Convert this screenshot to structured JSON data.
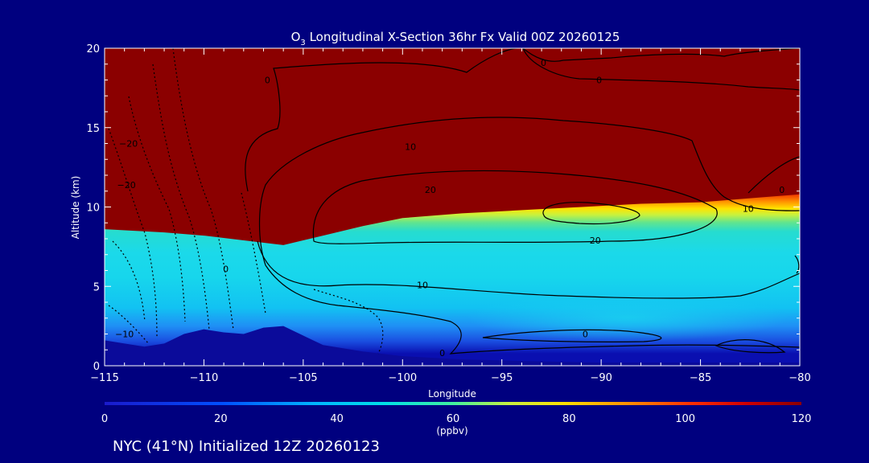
{
  "chart_data": {
    "type": "heatmap",
    "title": "O3 Longitudinal X-Section 36hr  Fx Valid 00Z 20260125",
    "title_parts": {
      "o": "O",
      "sub": "3",
      "rest": " Longitudinal X-Section 36hr  Fx Valid 00Z 20260125"
    },
    "xlabel": "Longitude",
    "ylabel": "Altitude (km)",
    "xlim": [
      -115,
      -80
    ],
    "ylim": [
      0,
      20
    ],
    "x_ticks": [
      {
        "value": -115,
        "label": "−115"
      },
      {
        "value": -110,
        "label": "−110"
      },
      {
        "value": -105,
        "label": "−105"
      },
      {
        "value": -100,
        "label": "−100"
      },
      {
        "value": -95,
        "label": "−95"
      },
      {
        "value": -90,
        "label": "−90"
      },
      {
        "value": -85,
        "label": "−85"
      },
      {
        "value": -80,
        "label": "−80"
      }
    ],
    "y_ticks": [
      {
        "value": 0,
        "label": "0"
      },
      {
        "value": 5,
        "label": "5"
      },
      {
        "value": 10,
        "label": "10"
      },
      {
        "value": 15,
        "label": "15"
      },
      {
        "value": 20,
        "label": "20"
      }
    ],
    "colorbar": {
      "label": "(ppbv)",
      "range": [
        0,
        120
      ],
      "ticks": [
        {
          "value": 0,
          "label": "0"
        },
        {
          "value": 20,
          "label": "20"
        },
        {
          "value": 40,
          "label": "40"
        },
        {
          "value": 60,
          "label": "60"
        },
        {
          "value": 80,
          "label": "80"
        },
        {
          "value": 100,
          "label": "100"
        },
        {
          "value": 120,
          "label": "120"
        }
      ]
    },
    "tropopause_height_km": [
      {
        "lon": -115,
        "z": 8.6
      },
      {
        "lon": -112,
        "z": 8.4
      },
      {
        "lon": -110,
        "z": 8.2
      },
      {
        "lon": -108,
        "z": 7.9
      },
      {
        "lon": -106,
        "z": 7.6
      },
      {
        "lon": -104,
        "z": 8.2
      },
      {
        "lon": -102,
        "z": 8.8
      },
      {
        "lon": -100,
        "z": 9.3
      },
      {
        "lon": -97,
        "z": 9.6
      },
      {
        "lon": -94,
        "z": 9.8
      },
      {
        "lon": -91,
        "z": 10.0
      },
      {
        "lon": -88,
        "z": 10.2
      },
      {
        "lon": -85,
        "z": 10.3
      },
      {
        "lon": -82,
        "z": 10.6
      },
      {
        "lon": -80,
        "z": 10.8
      }
    ],
    "terrain_height_km": [
      {
        "lon": -115,
        "z": 1.6
      },
      {
        "lon": -114,
        "z": 1.4
      },
      {
        "lon": -113,
        "z": 1.2
      },
      {
        "lon": -112,
        "z": 1.4
      },
      {
        "lon": -111,
        "z": 2.0
      },
      {
        "lon": -110,
        "z": 2.3
      },
      {
        "lon": -109,
        "z": 2.1
      },
      {
        "lon": -108,
        "z": 2.0
      },
      {
        "lon": -107,
        "z": 2.4
      },
      {
        "lon": -106,
        "z": 2.5
      },
      {
        "lon": -105,
        "z": 1.9
      },
      {
        "lon": -104,
        "z": 1.3
      },
      {
        "lon": -102,
        "z": 0.9
      },
      {
        "lon": -100,
        "z": 0.6
      },
      {
        "lon": -97,
        "z": 0.4
      },
      {
        "lon": -94,
        "z": 0.3
      },
      {
        "lon": -90,
        "z": 0.2
      },
      {
        "lon": -85,
        "z": 0.2
      },
      {
        "lon": -80,
        "z": 0.2
      }
    ],
    "contour_labels": [
      {
        "lon": -106.8,
        "z": 18.0,
        "text": "0"
      },
      {
        "lon": -92.9,
        "z": 19.1,
        "text": "0"
      },
      {
        "lon": -90.1,
        "z": 18.0,
        "text": "0"
      },
      {
        "lon": -99.6,
        "z": 13.8,
        "text": "10"
      },
      {
        "lon": -98.6,
        "z": 11.1,
        "text": "20"
      },
      {
        "lon": -90.3,
        "z": 7.9,
        "text": "20"
      },
      {
        "lon": -82.6,
        "z": 9.9,
        "text": "10"
      },
      {
        "lon": -99.0,
        "z": 5.1,
        "text": "10"
      },
      {
        "lon": -108.9,
        "z": 6.1,
        "text": "0"
      },
      {
        "lon": -90.8,
        "z": 2.0,
        "text": "0"
      },
      {
        "lon": -98.0,
        "z": 0.8,
        "text": "0"
      },
      {
        "lon": -80.9,
        "z": 11.1,
        "text": "0"
      },
      {
        "lon": -113.8,
        "z": 14.0,
        "text": "−20"
      },
      {
        "lon": -113.9,
        "z": 11.4,
        "text": "−20"
      },
      {
        "lon": -114.0,
        "z": 2.0,
        "text": "−10"
      }
    ]
  },
  "footer": {
    "text": "NYC (41°N) Initialized 12Z 20260123"
  }
}
